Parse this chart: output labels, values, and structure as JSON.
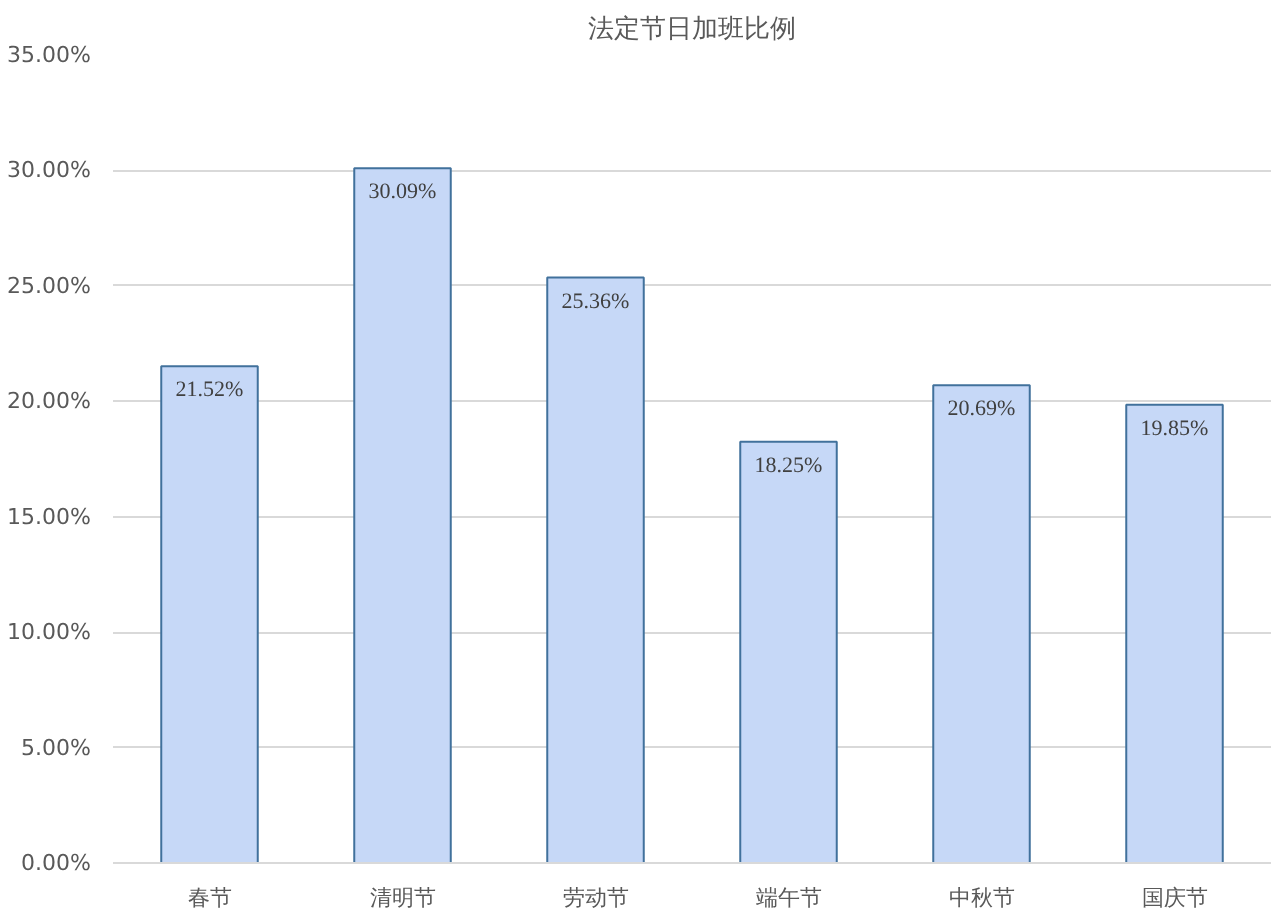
{
  "chart_data": {
    "type": "bar",
    "title": "法定节日加班比例",
    "categories": [
      "春节",
      "清明节",
      "劳动节",
      "端午节",
      "中秋节",
      "国庆节"
    ],
    "values": [
      21.52,
      30.09,
      25.36,
      18.25,
      20.69,
      19.85
    ],
    "value_labels": [
      "21.52%",
      "30.09%",
      "25.36%",
      "18.25%",
      "20.69%",
      "19.85%"
    ],
    "color": "#c6d8f7",
    "ylim": [
      0,
      35
    ],
    "yticks": [
      {
        "value": 0,
        "label": "0.00%"
      },
      {
        "value": 5,
        "label": "5.00%"
      },
      {
        "value": 10,
        "label": "10.00%"
      },
      {
        "value": 15,
        "label": "15.00%"
      },
      {
        "value": 20,
        "label": "20.00%"
      },
      {
        "value": 25,
        "label": "25.00%"
      },
      {
        "value": 30,
        "label": "30.00%"
      },
      {
        "value": 35,
        "label": "35.00%"
      }
    ],
    "grid": "y"
  }
}
